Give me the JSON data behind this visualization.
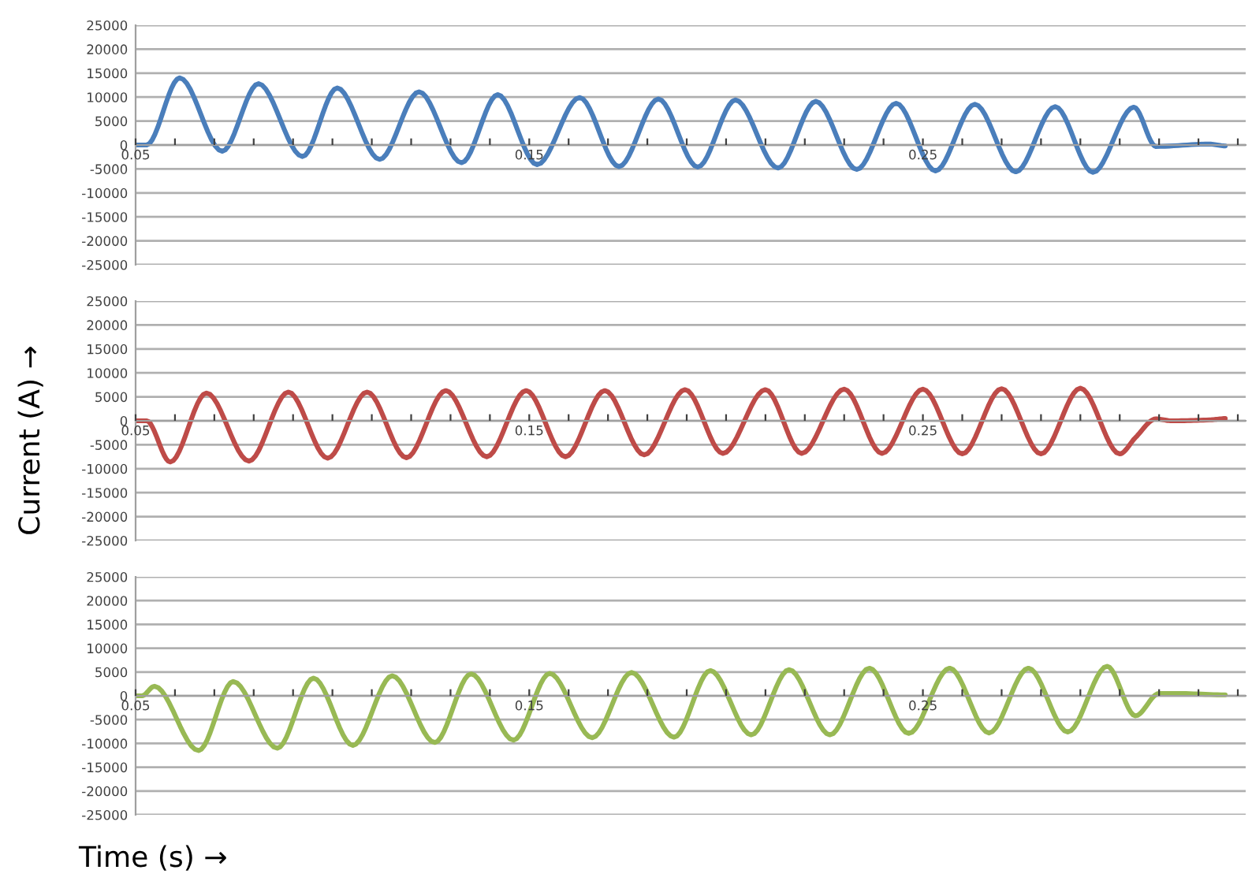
{
  "chart_data": [
    {
      "type": "line",
      "xlim": [
        0.05,
        0.332
      ],
      "ylim": [
        -25000,
        25000
      ],
      "yticks": [
        -25000,
        -20000,
        -15000,
        -10000,
        -5000,
        0,
        5000,
        10000,
        15000,
        20000,
        25000
      ],
      "xticks": [
        0.05,
        {
          "value": 0.06,
          "label": null
        },
        {
          "value": 0.07,
          "label": null
        },
        {
          "value": 0.08,
          "label": null
        },
        {
          "value": 0.09,
          "label": null
        },
        {
          "value": 0.1,
          "label": null
        },
        {
          "value": 0.11,
          "label": null
        },
        {
          "value": 0.12,
          "label": null
        },
        {
          "value": 0.13,
          "label": null
        },
        {
          "value": 0.14,
          "label": null
        },
        0.15,
        {
          "value": 0.16,
          "label": null
        },
        {
          "value": 0.17,
          "label": null
        },
        {
          "value": 0.18,
          "label": null
        },
        {
          "value": 0.19,
          "label": null
        },
        {
          "value": 0.2,
          "label": null
        },
        {
          "value": 0.21,
          "label": null
        },
        {
          "value": 0.22,
          "label": null
        },
        {
          "value": 0.23,
          "label": null
        },
        {
          "value": 0.24,
          "label": null
        },
        0.25,
        {
          "value": 0.26,
          "label": null
        },
        {
          "value": 0.27,
          "label": null
        },
        {
          "value": 0.28,
          "label": null
        },
        {
          "value": 0.29,
          "label": null
        },
        {
          "value": 0.3,
          "label": null
        },
        {
          "value": 0.31,
          "label": null
        },
        {
          "value": 0.32,
          "label": null
        },
        {
          "value": 0.33,
          "label": null
        }
      ],
      "grid": "y",
      "series": [
        {
          "color": "#4a7ebb",
          "x": [
            0.05,
            0.0528,
            0.0612,
            0.072,
            0.0812,
            0.0924,
            0.1012,
            0.112,
            0.122,
            0.1328,
            0.142,
            0.152,
            0.1628,
            0.1728,
            0.1828,
            0.1928,
            0.2024,
            0.2132,
            0.2228,
            0.2332,
            0.2432,
            0.2532,
            0.2632,
            0.2736,
            0.2836,
            0.2932,
            0.3036,
            0.3092,
            0.3228,
            0.3268
          ],
          "values": [
            0,
            0,
            14000,
            -1300,
            12800,
            -2400,
            11900,
            -3000,
            11100,
            -3700,
            10500,
            -4100,
            9900,
            -4500,
            9600,
            -4600,
            9400,
            -4800,
            9100,
            -5100,
            8700,
            -5400,
            8500,
            -5600,
            8000,
            -5700,
            7900,
            -300,
            200,
            -200
          ]
        }
      ]
    },
    {
      "type": "line",
      "ylabel": "Current (A) →",
      "xlim": [
        0.05,
        0.332
      ],
      "ylim": [
        -25000,
        25000
      ],
      "yticks": [
        -25000,
        -20000,
        -15000,
        -10000,
        -5000,
        0,
        5000,
        10000,
        15000,
        20000,
        25000
      ],
      "xticks": [
        0.05,
        {
          "value": 0.06,
          "label": null
        },
        {
          "value": 0.07,
          "label": null
        },
        {
          "value": 0.08,
          "label": null
        },
        {
          "value": 0.09,
          "label": null
        },
        {
          "value": 0.1,
          "label": null
        },
        {
          "value": 0.11,
          "label": null
        },
        {
          "value": 0.12,
          "label": null
        },
        {
          "value": 0.13,
          "label": null
        },
        {
          "value": 0.14,
          "label": null
        },
        0.15,
        {
          "value": 0.16,
          "label": null
        },
        {
          "value": 0.17,
          "label": null
        },
        {
          "value": 0.18,
          "label": null
        },
        {
          "value": 0.19,
          "label": null
        },
        {
          "value": 0.2,
          "label": null
        },
        {
          "value": 0.21,
          "label": null
        },
        {
          "value": 0.22,
          "label": null
        },
        {
          "value": 0.23,
          "label": null
        },
        {
          "value": 0.24,
          "label": null
        },
        0.25,
        {
          "value": 0.26,
          "label": null
        },
        {
          "value": 0.27,
          "label": null
        },
        {
          "value": 0.28,
          "label": null
        },
        {
          "value": 0.29,
          "label": null
        },
        {
          "value": 0.3,
          "label": null
        },
        {
          "value": 0.31,
          "label": null
        },
        {
          "value": 0.32,
          "label": null
        },
        {
          "value": 0.33,
          "label": null
        }
      ],
      "grid": "y",
      "series": [
        {
          "color": "#be4b48",
          "x": [
            0.05,
            0.0528,
            0.0588,
            0.068,
            0.0788,
            0.0888,
            0.0988,
            0.1088,
            0.1188,
            0.1288,
            0.1392,
            0.1492,
            0.1592,
            0.1692,
            0.1792,
            0.1896,
            0.1992,
            0.21,
            0.2192,
            0.23,
            0.2396,
            0.25,
            0.26,
            0.27,
            0.28,
            0.29,
            0.3,
            0.304,
            0.3092,
            0.3132,
            0.3228,
            0.3268
          ],
          "values": [
            0,
            0,
            -8600,
            5800,
            -8400,
            6000,
            -7800,
            6000,
            -7700,
            6300,
            -7500,
            6300,
            -7500,
            6300,
            -7100,
            6500,
            -6800,
            6500,
            -6800,
            6600,
            -6800,
            6600,
            -6900,
            6700,
            -6900,
            6800,
            -6900,
            -3500,
            400,
            0,
            200,
            500
          ]
        }
      ]
    },
    {
      "type": "line",
      "xlabel": "Time (s) →",
      "xlim": [
        0.05,
        0.332
      ],
      "ylim": [
        -25000,
        25000
      ],
      "yticks": [
        -25000,
        -20000,
        -15000,
        -10000,
        -5000,
        0,
        5000,
        10000,
        15000,
        20000,
        25000
      ],
      "xticks": [
        0.05,
        {
          "value": 0.06,
          "label": null
        },
        {
          "value": 0.07,
          "label": null
        },
        {
          "value": 0.08,
          "label": null
        },
        {
          "value": 0.09,
          "label": null
        },
        {
          "value": 0.1,
          "label": null
        },
        {
          "value": 0.11,
          "label": null
        },
        {
          "value": 0.12,
          "label": null
        },
        {
          "value": 0.13,
          "label": null
        },
        {
          "value": 0.14,
          "label": null
        },
        0.15,
        {
          "value": 0.16,
          "label": null
        },
        {
          "value": 0.17,
          "label": null
        },
        {
          "value": 0.18,
          "label": null
        },
        {
          "value": 0.19,
          "label": null
        },
        {
          "value": 0.2,
          "label": null
        },
        {
          "value": 0.21,
          "label": null
        },
        {
          "value": 0.22,
          "label": null
        },
        {
          "value": 0.23,
          "label": null
        },
        {
          "value": 0.24,
          "label": null
        },
        0.25,
        {
          "value": 0.26,
          "label": null
        },
        {
          "value": 0.27,
          "label": null
        },
        {
          "value": 0.28,
          "label": null
        },
        {
          "value": 0.29,
          "label": null
        },
        {
          "value": 0.3,
          "label": null
        },
        {
          "value": 0.31,
          "label": null
        },
        {
          "value": 0.32,
          "label": null
        },
        {
          "value": 0.33,
          "label": null
        }
      ],
      "grid": "y",
      "series": [
        {
          "color": "#98b954",
          "x": [
            0.05,
            0.0516,
            0.0548,
            0.066,
            0.0748,
            0.086,
            0.0952,
            0.1052,
            0.1152,
            0.126,
            0.1352,
            0.146,
            0.1552,
            0.166,
            0.176,
            0.1868,
            0.196,
            0.2064,
            0.216,
            0.2264,
            0.2364,
            0.2464,
            0.2568,
            0.2668,
            0.2768,
            0.2868,
            0.2968,
            0.304,
            0.31,
            0.3148,
            0.3268
          ],
          "values": [
            0,
            0,
            2000,
            -11500,
            3000,
            -11000,
            3700,
            -10400,
            4200,
            -9800,
            4600,
            -9300,
            4700,
            -8800,
            4900,
            -8700,
            5300,
            -8200,
            5500,
            -8200,
            5800,
            -7900,
            5800,
            -7800,
            5800,
            -7600,
            6200,
            -4200,
            500,
            500,
            200
          ]
        }
      ]
    }
  ]
}
